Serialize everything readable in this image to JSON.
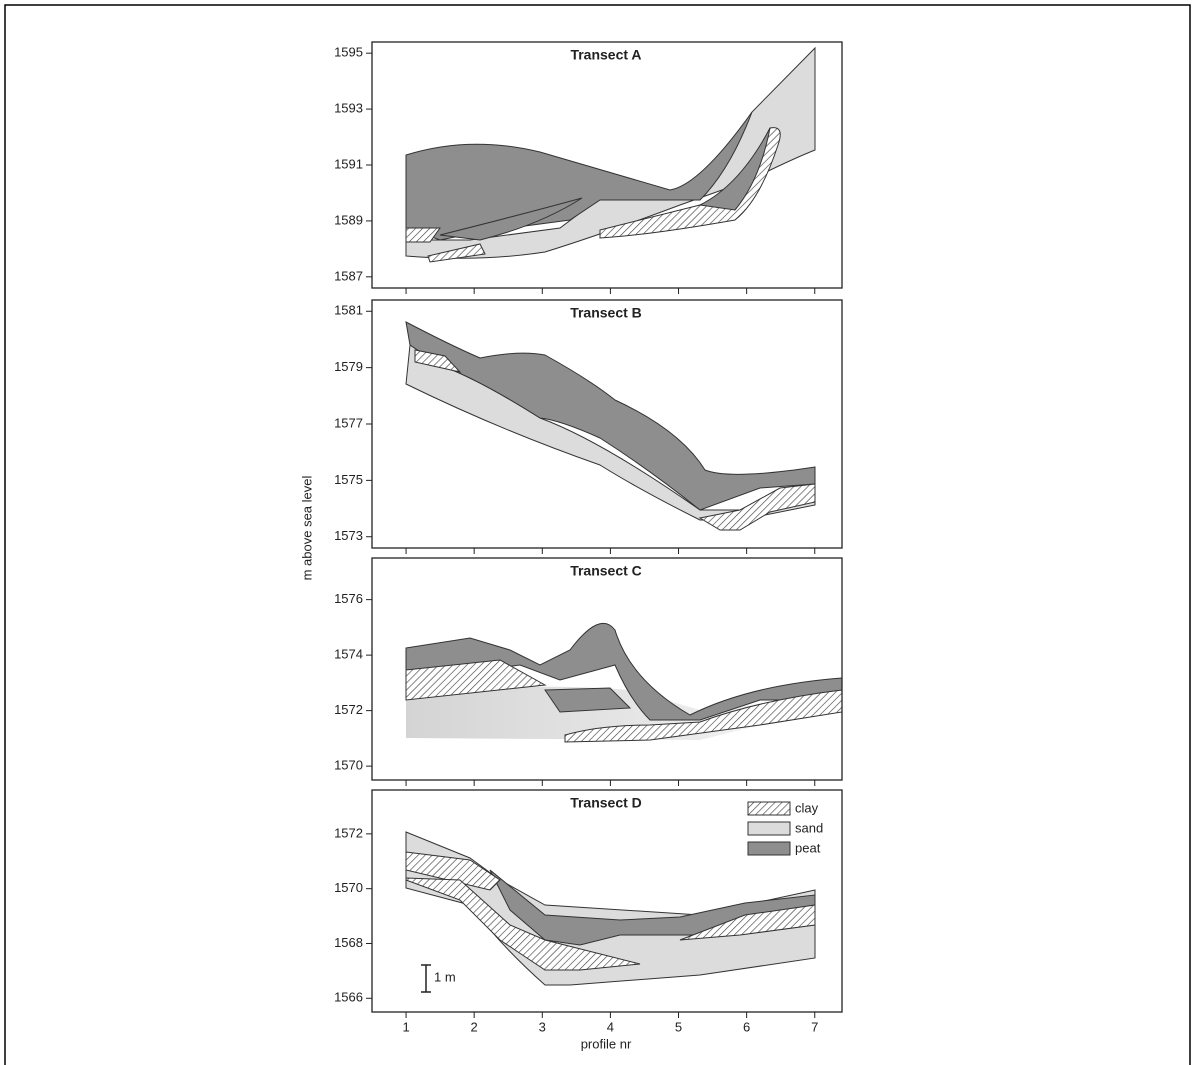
{
  "chart_data": {
    "type": "panels",
    "xlabel": "profile nr",
    "ylabel": "m above sea level",
    "xlim": [
      0.5,
      7.4
    ],
    "xticks": [
      1,
      2,
      3,
      4,
      5,
      6,
      7
    ],
    "legend": [
      "clay",
      "sand",
      "peat"
    ],
    "scale_label": "1 m",
    "panels": [
      {
        "title": "Transect A",
        "ylim": [
          1586.6,
          1595.4
        ],
        "yticks": [
          1587,
          1589,
          1591,
          1593,
          1595
        ]
      },
      {
        "title": "Transect B",
        "ylim": [
          1572.6,
          1581.4
        ],
        "yticks": [
          1573,
          1575,
          1577,
          1579,
          1581
        ]
      },
      {
        "title": "Transect C",
        "ylim": [
          1569.5,
          1577.5
        ],
        "yticks": [
          1570,
          1572,
          1574,
          1576
        ]
      },
      {
        "title": "Transect D",
        "ylim": [
          1565.5,
          1573.6
        ],
        "yticks": [
          1566,
          1568,
          1570,
          1572
        ]
      }
    ]
  }
}
